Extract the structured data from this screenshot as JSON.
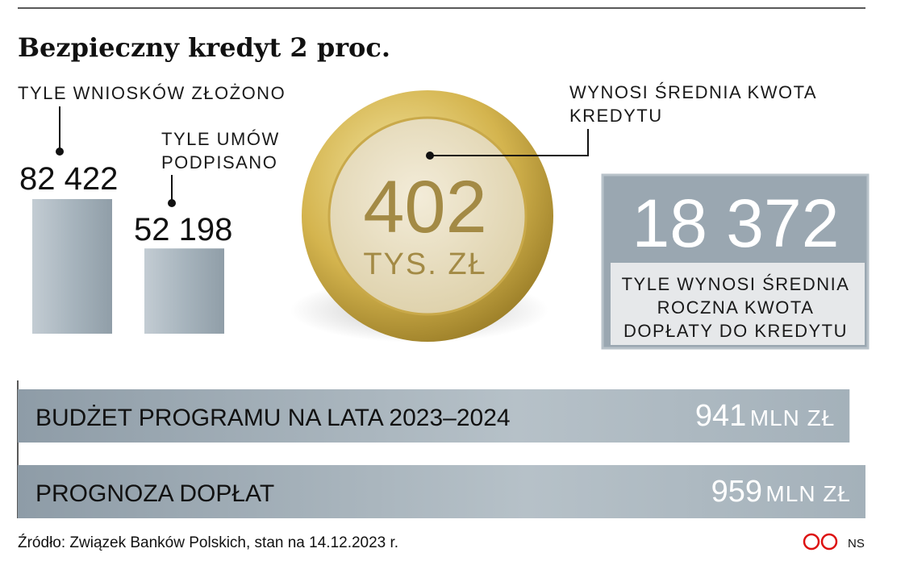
{
  "title": "Bezpieczny kredyt 2 proc.",
  "applications": {
    "label": "TYLE WNIOSKÓW ZŁOŻONO",
    "value": 82422,
    "value_label": "82 422"
  },
  "contracts": {
    "label_lines": [
      "TYLE UMÓW",
      "PODPISANO"
    ],
    "value": 52198,
    "value_label": "52 198"
  },
  "average_loan": {
    "label_lines": [
      "WYNOSI ŚREDNIA KWOTA",
      "KREDYTU"
    ],
    "value": 402,
    "unit": "TYS. ZŁ"
  },
  "average_subsidy": {
    "value": 18372,
    "value_label": "18 372",
    "label_lines": [
      "TYLE WYNOSI ŚREDNIA",
      "ROCZNA KWOTA",
      "DOPŁATY DO KREDYTU"
    ]
  },
  "budget_bars": [
    {
      "label": "BUDŻET PROGRAMU NA LATA 2023–2024",
      "value": 941,
      "unit": "MLN ZŁ"
    },
    {
      "label": "PROGNOZA DOPŁAT",
      "value": 959,
      "unit": "MLN ZŁ"
    }
  ],
  "footer": {
    "source": "Źródło: Związek Banków Polskich, stan na 14.12.2023 r.",
    "credit": "NS"
  }
}
